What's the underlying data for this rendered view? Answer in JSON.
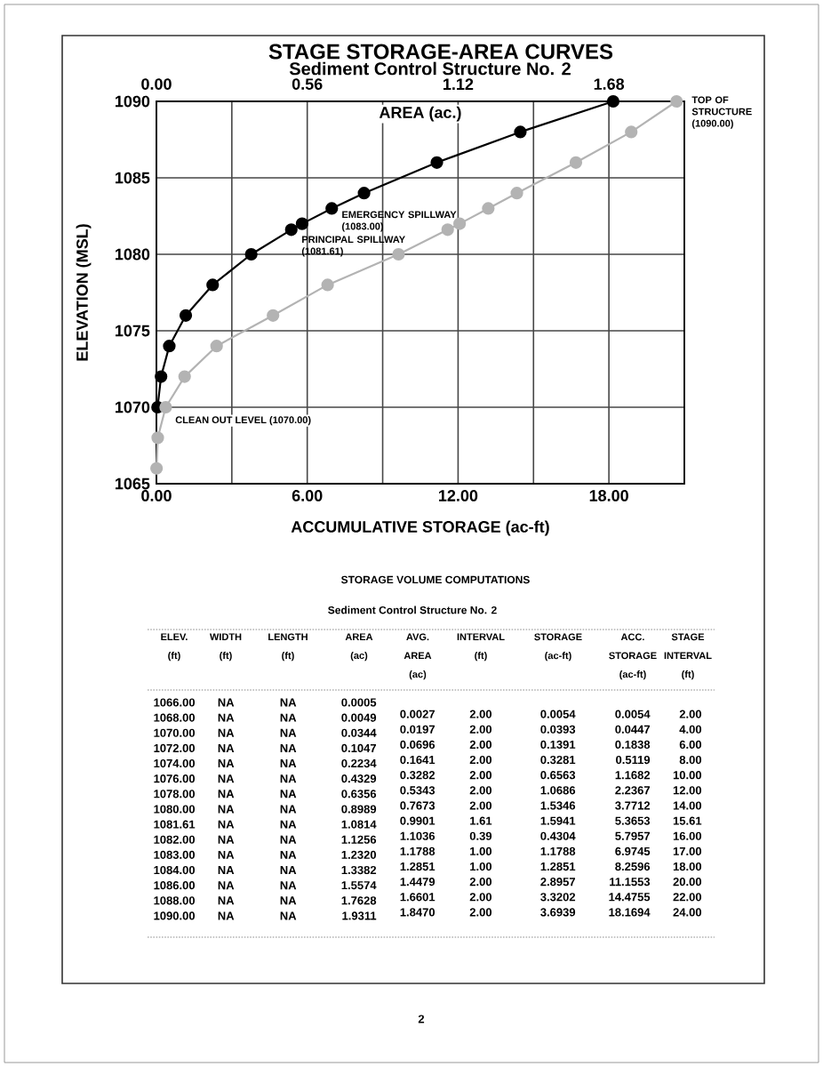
{
  "chart_data": [
    {
      "type": "line",
      "title": "STAGE STORAGE-AREA CURVES",
      "subtitle": "Sediment Control Structure No. 2",
      "xlabel": "ACCUMULATIVE STORAGE (ac-ft)",
      "ylabel": "ELEVATION (MSL)",
      "x2label": "AREA (ac.)",
      "series": [
        {
          "color": "#000000",
          "x": [
            0.0447,
            0.1838,
            0.5119,
            1.1682,
            2.2367,
            3.7712,
            5.3653,
            5.7957,
            6.9745,
            8.2596,
            11.1553,
            14.4755,
            18.1694
          ],
          "values": [
            1070,
            1072,
            1074,
            1076,
            1078,
            1080,
            1081.61,
            1082,
            1083,
            1084,
            1086,
            1088,
            1090
          ]
        },
        {
          "color": "#b3b3b3",
          "axis": "x2",
          "x": [
            0.0005,
            0.0049,
            0.0344,
            0.1047,
            0.2234,
            0.4329,
            0.6356,
            0.8989,
            1.0814,
            1.1256,
            1.232,
            1.3382,
            1.5574,
            1.7628,
            1.9311
          ],
          "values": [
            1066,
            1068,
            1070,
            1072,
            1074,
            1076,
            1078,
            1080,
            1081.61,
            1082,
            1083,
            1084,
            1086,
            1088,
            1090
          ]
        }
      ],
      "xlim": [
        0,
        21
      ],
      "xticks": [
        {
          "value": 0,
          "label": "0.00"
        },
        {
          "value": 3,
          "label": null
        },
        {
          "value": 6,
          "label": "6.00"
        },
        {
          "value": 9,
          "label": null
        },
        {
          "value": 12,
          "label": "12.00"
        },
        {
          "value": 15,
          "label": null
        },
        {
          "value": 18,
          "label": "18.00"
        }
      ],
      "x2lim": [
        0,
        1.96
      ],
      "x2ticks": [
        {
          "value": 0,
          "label": "0.00"
        },
        {
          "value": 0.56,
          "label": "0.56"
        },
        {
          "value": 1.12,
          "label": "1.12"
        },
        {
          "value": 1.68,
          "label": "1.68"
        }
      ],
      "ylim": [
        1065,
        1090
      ],
      "yticks": [
        1065,
        1070,
        1075,
        1080,
        1085,
        1090
      ],
      "grid": true,
      "marker": "circle",
      "line_style": "solid",
      "annotations": [
        "TOP OF STRUCTURE (1090.00)",
        {
          "text": "EMERGENCY SPILLWAY (1083.00)",
          "x": 6.9745,
          "y": 1083
        },
        {
          "text": "PRINCIPAL SPILLWAY (1081.61)",
          "x": 5.3653,
          "y": 1081.61
        },
        {
          "text": "CLEAN OUT LEVEL (1070.00)",
          "x": 0.0447,
          "y": 1070
        }
      ]
    },
    {
      "type": "heatmap",
      "title": "STORAGE VOLUME COMPUTATIONS",
      "subtitle": "Sediment Control Structure No. 2",
      "ylabel": "ELEV. (ft)",
      "categories": [
        "WIDTH (ft)",
        "LENGTH (ft)",
        "AREA (ac)",
        "AVG. AREA (ac)",
        "INTERVAL (ft)",
        "STORAGE (ac-ft)",
        "ACC. STORAGE (ac-ft)",
        "STAGE INTERVAL (ft)"
      ],
      "y_categories": [
        "1066.00",
        "1068.00",
        "1070.00",
        "1072.00",
        "1074.00",
        "1076.00",
        "1078.00",
        "1080.00",
        "1081.61",
        "1082.00",
        "1083.00",
        "1084.00",
        "1086.00",
        "1088.00",
        "1090.00"
      ],
      "cells": [
        [
          null,
          null,
          null,
          null,
          null,
          null,
          null,
          null
        ],
        [
          null,
          null,
          null,
          null,
          null,
          null,
          null,
          null
        ],
        [
          null,
          null,
          null,
          null,
          null,
          null,
          null,
          null
        ],
        [
          null,
          null,
          null,
          null,
          null,
          null,
          null,
          null
        ],
        [
          null,
          null,
          null,
          null,
          null,
          null,
          null,
          null
        ],
        [
          null,
          null,
          null,
          null,
          null,
          null,
          null,
          null
        ],
        [
          null,
          null,
          null,
          null,
          null,
          null,
          null,
          null
        ],
        [
          null,
          null,
          null,
          null,
          null,
          null,
          null,
          null
        ],
        [
          null,
          null,
          null,
          null,
          null,
          null,
          null,
          null
        ],
        [
          null,
          null,
          null,
          null,
          null,
          null,
          null,
          null
        ],
        [
          null,
          null,
          null,
          null,
          null,
          null,
          null,
          null
        ],
        [
          null,
          null,
          null,
          null,
          null,
          null,
          null,
          null
        ],
        [
          null,
          null,
          null,
          null,
          null,
          null,
          null,
          null
        ],
        [
          null,
          null,
          null,
          null,
          null,
          null,
          null,
          null
        ],
        [
          null,
          null,
          null,
          null,
          null,
          null,
          null,
          null
        ]
      ],
      "cell_labels": [
        [
          "NA",
          "NA",
          "0.0005",
          null,
          null,
          null,
          null,
          null
        ],
        [
          "NA",
          "NA",
          "0.0049",
          "0.0027",
          "2.00",
          "0.0054",
          "0.0054",
          "2.00"
        ],
        [
          "NA",
          "NA",
          "0.0344",
          "0.0197",
          "2.00",
          "0.0393",
          "0.0447",
          "4.00"
        ],
        [
          "NA",
          "NA",
          "0.1047",
          "0.0696",
          "2.00",
          "0.1391",
          "0.1838",
          "6.00"
        ],
        [
          "NA",
          "NA",
          "0.2234",
          "0.1641",
          "2.00",
          "0.3281",
          "0.5119",
          "8.00"
        ],
        [
          "NA",
          "NA",
          "0.4329",
          "0.3282",
          "2.00",
          "0.6563",
          "1.1682",
          "10.00"
        ],
        [
          "NA",
          "NA",
          "0.6356",
          "0.5343",
          "2.00",
          "1.0686",
          "2.2367",
          "12.00"
        ],
        [
          "NA",
          "NA",
          "0.8989",
          "0.7673",
          "2.00",
          "1.5346",
          "3.7712",
          "14.00"
        ],
        [
          "NA",
          "NA",
          "1.0814",
          "0.9901",
          "1.61",
          "1.5941",
          "5.3653",
          "15.61"
        ],
        [
          "NA",
          "NA",
          "1.1256",
          "1.1036",
          "0.39",
          "0.4304",
          "5.7957",
          "16.00"
        ],
        [
          "NA",
          "NA",
          "1.2320",
          "1.1788",
          "1.00",
          "1.1788",
          "6.9745",
          "17.00"
        ],
        [
          "NA",
          "NA",
          "1.3382",
          "1.2851",
          "1.00",
          "1.2851",
          "8.2596",
          "18.00"
        ],
        [
          "NA",
          "NA",
          "1.5574",
          "1.4479",
          "2.00",
          "2.8957",
          "11.1553",
          "20.00"
        ],
        [
          "NA",
          "NA",
          "1.7628",
          "1.6601",
          "2.00",
          "3.3202",
          "14.4755",
          "22.00"
        ],
        [
          "NA",
          "NA",
          "1.9311",
          "1.8470",
          "2.00",
          "3.6939",
          "18.1694",
          "24.00"
        ]
      ],
      "annotations": [
        "2"
      ]
    }
  ]
}
